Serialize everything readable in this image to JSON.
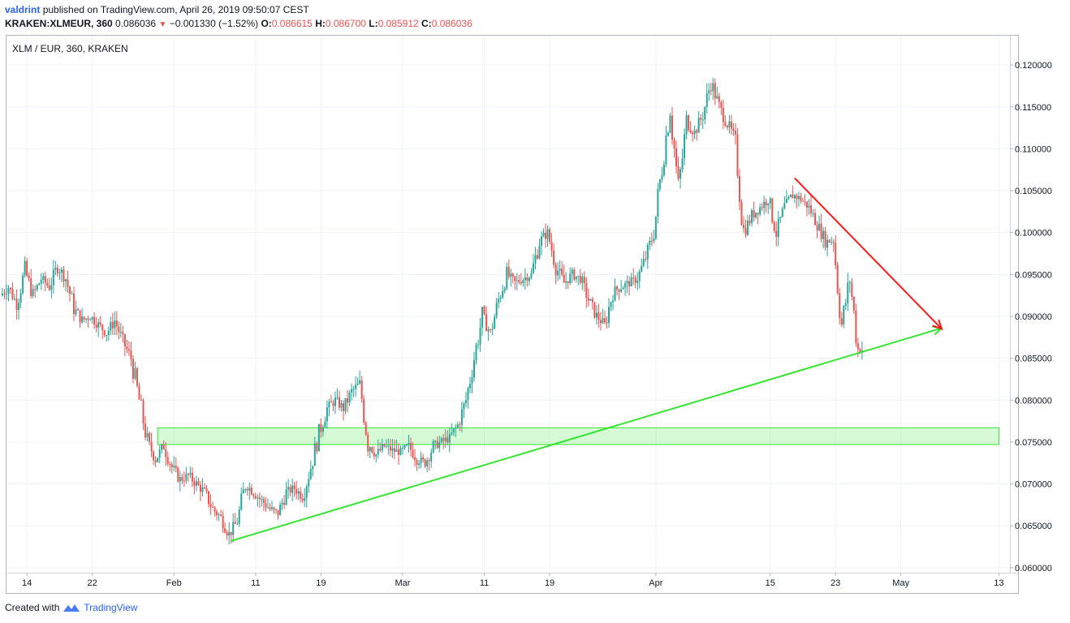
{
  "header": {
    "author": "valdrint",
    "published_text": "published on TradingView.com, April 26, 2019 09:50:07 CEST",
    "symbol": "KRAKEN:XLMEUR, 360",
    "last": "0.086036",
    "change": "−0.001330 (−1.52%)",
    "o_label": "O:",
    "o_val": "0.086615",
    "h_label": "H:",
    "h_val": "0.086700",
    "l_label": "L:",
    "l_val": "0.085912",
    "c_label": "C:",
    "c_val": "0.086036"
  },
  "legend": "XLM / EUR, 360, KRAKEN",
  "footer": {
    "created_text": "Created with",
    "brand": "TradingView"
  },
  "colors": {
    "up": "#26a69a",
    "down": "#ef5350",
    "support": "#33e62e",
    "resistance": "#ff1a1a",
    "zone": "#33e62e"
  },
  "chart_data": {
    "type": "candlestick",
    "title": "XLM / EUR, 360, KRAKEN",
    "ylim": [
      0.0595,
      0.1235
    ],
    "y_ticks": [
      "0.120000",
      "0.115000",
      "0.110000",
      "0.105000",
      "0.100000",
      "0.095000",
      "0.090000",
      "0.085000",
      "0.080000",
      "0.075000",
      "0.070000",
      "0.065000",
      "0.060000"
    ],
    "x_ticks": [
      {
        "label": "14",
        "date": "2019-01-14"
      },
      {
        "label": "22",
        "date": "2019-01-22"
      },
      {
        "label": "Feb",
        "date": "2019-02-01"
      },
      {
        "label": "11",
        "date": "2019-02-11"
      },
      {
        "label": "19",
        "date": "2019-02-19"
      },
      {
        "label": "Mar",
        "date": "2019-03-01"
      },
      {
        "label": "11",
        "date": "2019-03-11"
      },
      {
        "label": "19",
        "date": "2019-03-19"
      },
      {
        "label": "Apr",
        "date": "2019-04-01"
      },
      {
        "label": "15",
        "date": "2019-04-15"
      },
      {
        "label": "23",
        "date": "2019-04-23"
      },
      {
        "label": "May",
        "date": "2019-05-01"
      },
      {
        "label": "13",
        "date": "2019-05-13"
      }
    ],
    "x_range": [
      "2019-01-11T12:00",
      "2019-05-14T06:00"
    ],
    "close_series": [
      {
        "date": "2019-01-11",
        "close": 0.0925
      },
      {
        "date": "2019-01-12",
        "close": 0.0935
      },
      {
        "date": "2019-01-13",
        "close": 0.0915
      },
      {
        "date": "2019-01-14",
        "close": 0.0955
      },
      {
        "date": "2019-01-15",
        "close": 0.0925
      },
      {
        "date": "2019-01-16",
        "close": 0.0945
      },
      {
        "date": "2019-01-17",
        "close": 0.0935
      },
      {
        "date": "2019-01-18",
        "close": 0.096
      },
      {
        "date": "2019-01-19",
        "close": 0.0945
      },
      {
        "date": "2019-01-20",
        "close": 0.091
      },
      {
        "date": "2019-01-21",
        "close": 0.0895
      },
      {
        "date": "2019-01-22",
        "close": 0.09
      },
      {
        "date": "2019-01-23",
        "close": 0.089
      },
      {
        "date": "2019-01-24",
        "close": 0.088
      },
      {
        "date": "2019-01-25",
        "close": 0.0895
      },
      {
        "date": "2019-01-26",
        "close": 0.087
      },
      {
        "date": "2019-01-27",
        "close": 0.085
      },
      {
        "date": "2019-01-28",
        "close": 0.08
      },
      {
        "date": "2019-01-29",
        "close": 0.075
      },
      {
        "date": "2019-01-30",
        "close": 0.073
      },
      {
        "date": "2019-01-31",
        "close": 0.0745
      },
      {
        "date": "2019-02-01",
        "close": 0.072
      },
      {
        "date": "2019-02-02",
        "close": 0.0705
      },
      {
        "date": "2019-02-03",
        "close": 0.071
      },
      {
        "date": "2019-02-04",
        "close": 0.07
      },
      {
        "date": "2019-02-05",
        "close": 0.069
      },
      {
        "date": "2019-02-06",
        "close": 0.067
      },
      {
        "date": "2019-02-07",
        "close": 0.066
      },
      {
        "date": "2019-02-08",
        "close": 0.064
      },
      {
        "date": "2019-02-09",
        "close": 0.0655
      },
      {
        "date": "2019-02-10",
        "close": 0.07
      },
      {
        "date": "2019-02-11",
        "close": 0.069
      },
      {
        "date": "2019-02-12",
        "close": 0.068
      },
      {
        "date": "2019-02-13",
        "close": 0.067
      },
      {
        "date": "2019-02-14",
        "close": 0.0665
      },
      {
        "date": "2019-02-15",
        "close": 0.069
      },
      {
        "date": "2019-02-16",
        "close": 0.0695
      },
      {
        "date": "2019-02-17",
        "close": 0.0685
      },
      {
        "date": "2019-02-18",
        "close": 0.072
      },
      {
        "date": "2019-02-19",
        "close": 0.076
      },
      {
        "date": "2019-02-20",
        "close": 0.079
      },
      {
        "date": "2019-02-21",
        "close": 0.08
      },
      {
        "date": "2019-02-22",
        "close": 0.079
      },
      {
        "date": "2019-02-23",
        "close": 0.081
      },
      {
        "date": "2019-02-24",
        "close": 0.082
      },
      {
        "date": "2019-02-25",
        "close": 0.075
      },
      {
        "date": "2019-02-26",
        "close": 0.0735
      },
      {
        "date": "2019-02-27",
        "close": 0.0745
      },
      {
        "date": "2019-02-28",
        "close": 0.074
      },
      {
        "date": "2019-03-01",
        "close": 0.0738
      },
      {
        "date": "2019-03-02",
        "close": 0.0745
      },
      {
        "date": "2019-03-03",
        "close": 0.073
      },
      {
        "date": "2019-03-04",
        "close": 0.0725
      },
      {
        "date": "2019-03-05",
        "close": 0.0745
      },
      {
        "date": "2019-03-06",
        "close": 0.075
      },
      {
        "date": "2019-03-07",
        "close": 0.0755
      },
      {
        "date": "2019-03-08",
        "close": 0.077
      },
      {
        "date": "2019-03-09",
        "close": 0.08
      },
      {
        "date": "2019-03-10",
        "close": 0.085
      },
      {
        "date": "2019-03-11",
        "close": 0.09
      },
      {
        "date": "2019-03-12",
        "close": 0.088
      },
      {
        "date": "2019-03-13",
        "close": 0.092
      },
      {
        "date": "2019-03-14",
        "close": 0.095
      },
      {
        "date": "2019-03-15",
        "close": 0.094
      },
      {
        "date": "2019-03-16",
        "close": 0.0945
      },
      {
        "date": "2019-03-17",
        "close": 0.095
      },
      {
        "date": "2019-03-18",
        "close": 0.099
      },
      {
        "date": "2019-03-19",
        "close": 0.1
      },
      {
        "date": "2019-03-20",
        "close": 0.096
      },
      {
        "date": "2019-03-21",
        "close": 0.094
      },
      {
        "date": "2019-03-22",
        "close": 0.095
      },
      {
        "date": "2019-03-23",
        "close": 0.0945
      },
      {
        "date": "2019-03-24",
        "close": 0.092
      },
      {
        "date": "2019-03-25",
        "close": 0.09
      },
      {
        "date": "2019-03-26",
        "close": 0.089
      },
      {
        "date": "2019-03-27",
        "close": 0.093
      },
      {
        "date": "2019-03-28",
        "close": 0.0935
      },
      {
        "date": "2019-03-29",
        "close": 0.094
      },
      {
        "date": "2019-03-30",
        "close": 0.0945
      },
      {
        "date": "2019-03-31",
        "close": 0.097
      },
      {
        "date": "2019-04-01",
        "close": 0.1
      },
      {
        "date": "2019-04-02",
        "close": 0.108
      },
      {
        "date": "2019-04-03",
        "close": 0.115
      },
      {
        "date": "2019-04-04",
        "close": 0.105
      },
      {
        "date": "2019-04-05",
        "close": 0.113
      },
      {
        "date": "2019-04-06",
        "close": 0.112
      },
      {
        "date": "2019-04-07",
        "close": 0.114
      },
      {
        "date": "2019-04-08",
        "close": 0.118
      },
      {
        "date": "2019-04-09",
        "close": 0.115
      },
      {
        "date": "2019-04-10",
        "close": 0.113
      },
      {
        "date": "2019-04-11",
        "close": 0.111
      },
      {
        "date": "2019-04-12",
        "close": 0.1
      },
      {
        "date": "2019-04-13",
        "close": 0.102
      },
      {
        "date": "2019-04-14",
        "close": 0.103
      },
      {
        "date": "2019-04-15",
        "close": 0.104
      },
      {
        "date": "2019-04-16",
        "close": 0.1
      },
      {
        "date": "2019-04-17",
        "close": 0.103
      },
      {
        "date": "2019-04-18",
        "close": 0.1045
      },
      {
        "date": "2019-04-19",
        "close": 0.104
      },
      {
        "date": "2019-04-20",
        "close": 0.103
      },
      {
        "date": "2019-04-21",
        "close": 0.101
      },
      {
        "date": "2019-04-22",
        "close": 0.099
      },
      {
        "date": "2019-04-23",
        "close": 0.099
      },
      {
        "date": "2019-04-24",
        "close": 0.089
      },
      {
        "date": "2019-04-25",
        "close": 0.0945
      },
      {
        "date": "2019-04-26",
        "close": 0.086
      }
    ],
    "annotations": [
      {
        "type": "support_trendline",
        "color": "green",
        "from": {
          "date": "2019-02-08",
          "value": 0.0632
        },
        "to": {
          "date": "2019-05-06",
          "value": 0.0886
        },
        "arrow": "end"
      },
      {
        "type": "resistance_trendline",
        "color": "red",
        "from": {
          "date": "2019-04-18",
          "value": 0.1065
        },
        "to": {
          "date": "2019-05-06",
          "value": 0.0885
        },
        "arrow": "end"
      },
      {
        "type": "zone",
        "color": "green",
        "from_date": "2019-01-30",
        "to_date": "2019-05-13",
        "low": 0.0747,
        "high": 0.0767
      }
    ]
  }
}
